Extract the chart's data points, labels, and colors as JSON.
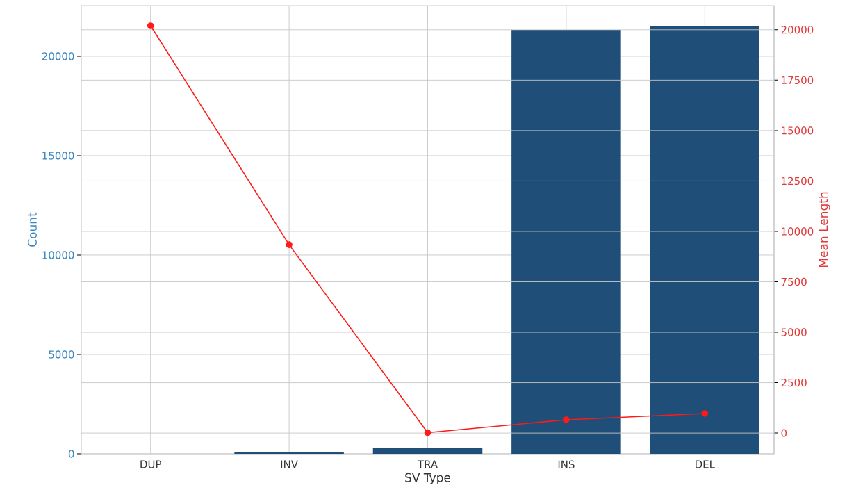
{
  "chart_data": {
    "type": "bar",
    "xlabel": "SV Type",
    "ylabel": "Count",
    "y2label": "Mean Length",
    "categories": [
      "DUP",
      "INV",
      "TRA",
      "INS",
      "DEL"
    ],
    "series": [
      {
        "color": "#1f4e79",
        "values": [
          0,
          70,
          280,
          21330,
          21500
        ]
      },
      {
        "type": "line",
        "axis": "y2",
        "color": "#ff1a1a",
        "values": [
          20200,
          9340,
          20,
          660,
          970
        ]
      }
    ],
    "ylim": [
      0,
      22550
    ],
    "yticks": [
      0,
      5000,
      10000,
      15000,
      20000
    ],
    "y2lim": [
      -1030,
      21200
    ],
    "y2ticks": [
      0,
      2500,
      5000,
      7500,
      10000,
      12500,
      15000,
      17500,
      20000
    ],
    "grid": true,
    "marker": "circle"
  }
}
